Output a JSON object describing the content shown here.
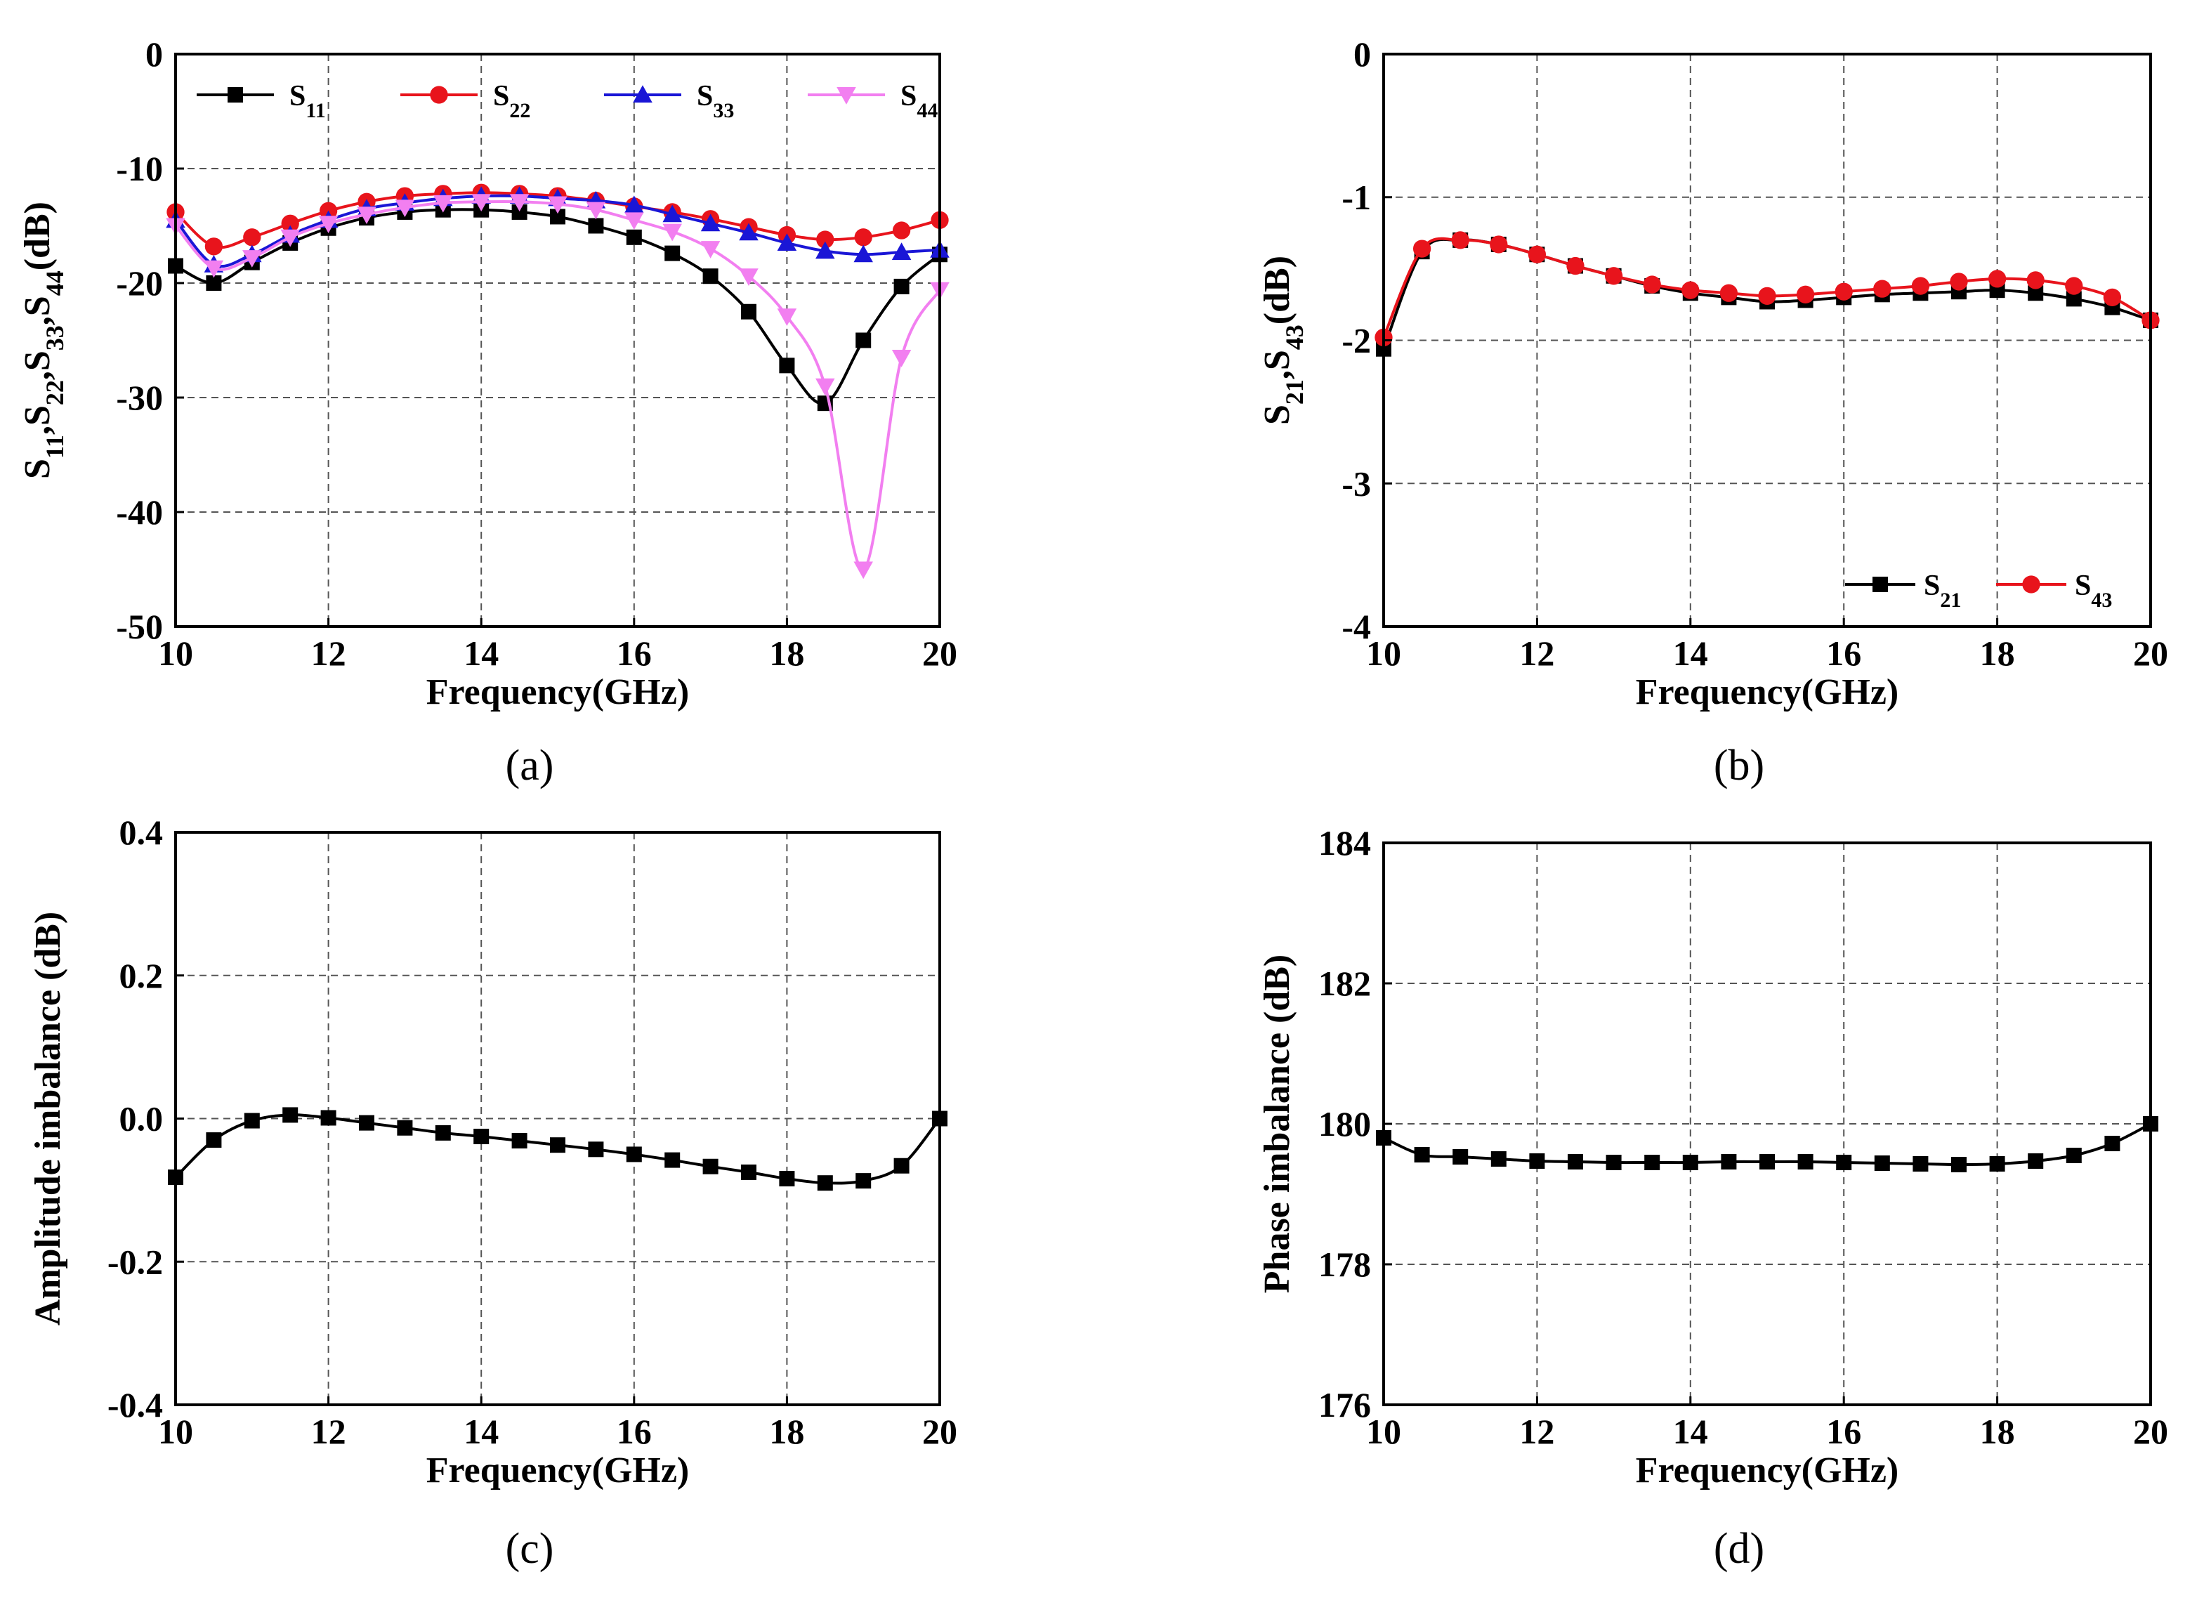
{
  "chart_data": [
    {
      "id": "a",
      "type": "line",
      "caption": "(a)",
      "xlabel": "Frequency(GHz)",
      "ylabel": "S11,S22,S33,S44(dB)",
      "ylabel_parts": [
        {
          "t": "S",
          "sub": "11"
        },
        {
          "t": ",S",
          "sub": "22"
        },
        {
          "t": ",S",
          "sub": "33"
        },
        {
          "t": ",S",
          "sub": "44"
        },
        {
          "t": "(dB)",
          "sub": ""
        }
      ],
      "xlim": [
        10,
        20
      ],
      "ylim": [
        -50,
        0
      ],
      "xticks": [
        10,
        12,
        14,
        16,
        18,
        20
      ],
      "yticks": [
        -50,
        -40,
        -30,
        -20,
        -10,
        0
      ],
      "legend_position": "top",
      "x": [
        10,
        10.5,
        11,
        11.5,
        12,
        12.5,
        13,
        13.5,
        14,
        14.5,
        15,
        15.5,
        16,
        16.5,
        17,
        17.5,
        18,
        18.5,
        19,
        19.5,
        20
      ],
      "series": [
        {
          "name": "S11",
          "base": "S",
          "sub": "11",
          "color": "#000000",
          "marker": "square",
          "values": [
            -18.5,
            -20.0,
            -18.2,
            -16.5,
            -15.2,
            -14.3,
            -13.8,
            -13.6,
            -13.6,
            -13.8,
            -14.2,
            -15.0,
            -16.0,
            -17.4,
            -19.4,
            -22.5,
            -27.2,
            -30.5,
            -25.0,
            -20.3,
            -17.5
          ]
        },
        {
          "name": "S22",
          "base": "S",
          "sub": "22",
          "color": "#e8141c",
          "marker": "circle",
          "values": [
            -13.8,
            -16.8,
            -16.0,
            -14.8,
            -13.7,
            -12.9,
            -12.4,
            -12.2,
            -12.1,
            -12.2,
            -12.4,
            -12.8,
            -13.3,
            -13.8,
            -14.4,
            -15.1,
            -15.8,
            -16.2,
            -16.0,
            -15.4,
            -14.5
          ]
        },
        {
          "name": "S33",
          "base": "S",
          "sub": "33",
          "color": "#1a16d6",
          "marker": "triangle-up",
          "values": [
            -14.5,
            -18.4,
            -17.5,
            -15.8,
            -14.5,
            -13.5,
            -13.0,
            -12.6,
            -12.4,
            -12.4,
            -12.6,
            -12.8,
            -13.2,
            -14.0,
            -14.8,
            -15.6,
            -16.5,
            -17.2,
            -17.5,
            -17.3,
            -17.1
          ]
        },
        {
          "name": "S44",
          "base": "S",
          "sub": "44",
          "color": "#f27ff0",
          "marker": "triangle-down",
          "values": [
            -15.0,
            -18.7,
            -17.8,
            -16.0,
            -14.8,
            -14.0,
            -13.4,
            -13.0,
            -12.9,
            -12.9,
            -13.1,
            -13.6,
            -14.5,
            -15.5,
            -17.0,
            -19.4,
            -22.9,
            -29.0,
            -45.0,
            -26.5,
            -20.6
          ]
        }
      ]
    },
    {
      "id": "b",
      "type": "line",
      "caption": "(b)",
      "xlabel": "Frequency(GHz)",
      "ylabel": "S21,S43(dB)",
      "ylabel_parts": [
        {
          "t": "S",
          "sub": "21"
        },
        {
          "t": ",S",
          "sub": "43"
        },
        {
          "t": "(dB)",
          "sub": ""
        }
      ],
      "xlim": [
        10,
        20
      ],
      "ylim": [
        -4,
        0
      ],
      "xticks": [
        10,
        12,
        14,
        16,
        18,
        20
      ],
      "yticks": [
        -4,
        -3,
        -2,
        -1,
        0
      ],
      "legend_position": "bottom-right",
      "x": [
        10,
        10.5,
        11,
        11.5,
        12,
        12.5,
        13,
        13.5,
        14,
        14.5,
        15,
        15.5,
        16,
        16.5,
        17,
        17.5,
        18,
        18.5,
        19,
        19.5,
        20
      ],
      "series": [
        {
          "name": "S21",
          "base": "S",
          "sub": "21",
          "color": "#000000",
          "marker": "square",
          "values": [
            -2.06,
            -1.38,
            -1.3,
            -1.33,
            -1.4,
            -1.48,
            -1.55,
            -1.62,
            -1.67,
            -1.7,
            -1.73,
            -1.72,
            -1.7,
            -1.68,
            -1.67,
            -1.66,
            -1.65,
            -1.67,
            -1.71,
            -1.77,
            -1.86
          ]
        },
        {
          "name": "S43",
          "base": "S",
          "sub": "43",
          "color": "#e8141c",
          "marker": "circle",
          "values": [
            -1.98,
            -1.36,
            -1.3,
            -1.33,
            -1.4,
            -1.48,
            -1.55,
            -1.61,
            -1.65,
            -1.67,
            -1.69,
            -1.68,
            -1.66,
            -1.64,
            -1.62,
            -1.59,
            -1.57,
            -1.58,
            -1.62,
            -1.7,
            -1.86
          ]
        }
      ]
    },
    {
      "id": "c",
      "type": "line",
      "caption": "(c)",
      "xlabel": "Frequency(GHz)",
      "ylabel": "Amplitude imbalance (dB)",
      "ylabel_parts": [
        {
          "t": "Amplitude imbalance (dB)",
          "sub": ""
        }
      ],
      "xlim": [
        10,
        20
      ],
      "ylim": [
        -0.4,
        0.4
      ],
      "xticks": [
        10,
        12,
        14,
        16,
        18,
        20
      ],
      "yticks": [
        -0.4,
        -0.2,
        0.0,
        0.2,
        0.4
      ],
      "ytick_labels": [
        "-0.4",
        "-0.2",
        "0.0",
        "0.2",
        "0.4"
      ],
      "x": [
        10,
        10.5,
        11,
        11.5,
        12,
        12.5,
        13,
        13.5,
        14,
        14.5,
        15,
        15.5,
        16,
        16.5,
        17,
        17.5,
        18,
        18.5,
        19,
        19.5,
        20
      ],
      "series": [
        {
          "name": "Amplitude imbalance",
          "color": "#000000",
          "marker": "square",
          "values": [
            -0.082,
            -0.03,
            -0.003,
            0.005,
            0.001,
            -0.006,
            -0.013,
            -0.02,
            -0.025,
            -0.031,
            -0.037,
            -0.043,
            -0.05,
            -0.058,
            -0.067,
            -0.075,
            -0.084,
            -0.09,
            -0.087,
            -0.066,
            0.0
          ]
        }
      ]
    },
    {
      "id": "d",
      "type": "line",
      "caption": "(d)",
      "xlabel": "Frequency(GHz)",
      "ylabel": "Phase imbalance (dB)",
      "ylabel_parts": [
        {
          "t": "Phase imbalance (dB)",
          "sub": ""
        }
      ],
      "xlim": [
        10,
        20
      ],
      "ylim": [
        176,
        184
      ],
      "xticks": [
        10,
        12,
        14,
        16,
        18,
        20
      ],
      "yticks": [
        176,
        178,
        180,
        182,
        184
      ],
      "x": [
        10,
        10.5,
        11,
        11.5,
        12,
        12.5,
        13,
        13.5,
        14,
        14.5,
        15,
        15.5,
        16,
        16.5,
        17,
        17.5,
        18,
        18.5,
        19,
        19.5,
        20
      ],
      "series": [
        {
          "name": "Phase imbalance",
          "color": "#000000",
          "marker": "square",
          "values": [
            179.8,
            179.56,
            179.53,
            179.5,
            179.47,
            179.46,
            179.45,
            179.45,
            179.45,
            179.46,
            179.46,
            179.46,
            179.45,
            179.44,
            179.43,
            179.42,
            179.43,
            179.47,
            179.55,
            179.72,
            180.0
          ]
        }
      ]
    }
  ]
}
